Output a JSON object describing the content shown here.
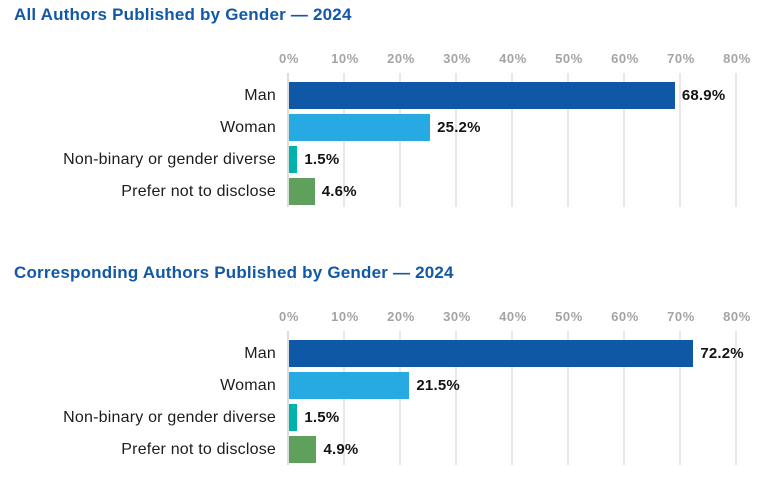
{
  "page": {
    "background": "#FFFFFF"
  },
  "colors": {
    "title_blue": "#1258A6",
    "bar_dark_blue": "#0E58A5",
    "bar_light_blue": "#27AAE1",
    "bar_teal": "#00B2AC",
    "bar_green": "#5FA05C",
    "axis_tick_gray": "#A2A4A7",
    "gridline_gray": "#E7E8E9",
    "label_black": "#1C1C1C"
  },
  "chart_data": [
    {
      "type": "bar",
      "orientation": "horizontal",
      "title": "All Authors Published by Gender — 2024",
      "categories": [
        "Man",
        "Woman",
        "Non-binary or gender diverse",
        "Prefer not to disclose"
      ],
      "values": [
        68.9,
        25.2,
        1.5,
        4.6
      ],
      "value_labels": [
        "68.9%",
        "25.2%",
        "1.5%",
        "4.6%"
      ],
      "bar_colors": [
        "#0E58A5",
        "#27AAE1",
        "#00B2AC",
        "#5FA05C"
      ],
      "xlabel": "",
      "ylabel": "",
      "xlim": [
        0,
        80
      ],
      "xtick_step": 10,
      "xticks": [
        "0%",
        "10%",
        "20%",
        "30%",
        "40%",
        "50%",
        "60%",
        "70%",
        "80%"
      ],
      "grid": true,
      "legend": false
    },
    {
      "type": "bar",
      "orientation": "horizontal",
      "title": "Corresponding Authors Published by Gender — 2024",
      "categories": [
        "Man",
        "Woman",
        "Non-binary or gender diverse",
        "Prefer not to disclose"
      ],
      "values": [
        72.2,
        21.5,
        1.5,
        4.9
      ],
      "value_labels": [
        "72.2%",
        "21.5%",
        "1.5%",
        "4.9%"
      ],
      "bar_colors": [
        "#0E58A5",
        "#27AAE1",
        "#00B2AC",
        "#5FA05C"
      ],
      "xlabel": "",
      "ylabel": "",
      "xlim": [
        0,
        80
      ],
      "xtick_step": 10,
      "xticks": [
        "0%",
        "10%",
        "20%",
        "30%",
        "40%",
        "50%",
        "60%",
        "70%",
        "80%"
      ],
      "grid": true,
      "legend": false
    }
  ]
}
